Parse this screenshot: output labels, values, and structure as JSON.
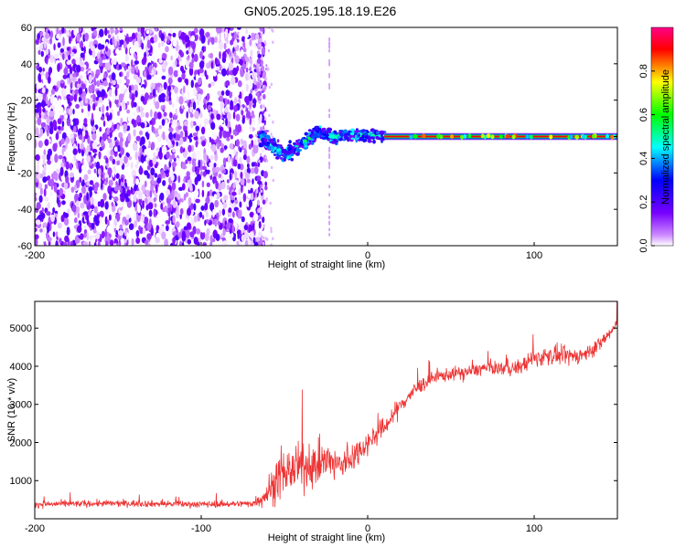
{
  "figure": {
    "title": "GN05.2025.195.18.19.E26"
  },
  "chart_data": [
    {
      "type": "heatmap",
      "title": "GN05.2025.195.18.19.E26",
      "xlabel": "Height of straight line (km)",
      "ylabel": "Frequency (Hz)",
      "xlim": [
        -200,
        150
      ],
      "ylim": [
        -60,
        60
      ],
      "x_ticks": [
        -200,
        -100,
        0,
        100
      ],
      "y_ticks": [
        -60,
        -40,
        -20,
        0,
        20,
        40,
        60
      ],
      "x_tick_labels": [
        "-200",
        "-100",
        "0",
        "100"
      ],
      "y_tick_labels": [
        "-60",
        "-40",
        "-20",
        "0",
        "20",
        "40",
        "60"
      ],
      "colorbar": {
        "label": "Normalized spectral amplitude",
        "range": [
          0,
          1
        ],
        "ticks": [
          0.0,
          0.2,
          0.4,
          0.6,
          0.8
        ],
        "tick_labels": [
          "0.0",
          "0.2",
          "0.4",
          "0.6",
          "0.8"
        ],
        "colormap": [
          "#ffffff",
          "#9900ff",
          "#0000ff",
          "#00ffff",
          "#00ff00",
          "#ffff00",
          "#ff0000",
          "#ff00aa"
        ]
      },
      "regions": [
        {
          "name": "broadband noise",
          "x_range": [
            -200,
            -65
          ],
          "freq_range": [
            -60,
            60
          ],
          "amplitude": 0.1
        },
        {
          "name": "transition",
          "x_range": [
            -65,
            10
          ],
          "center_freq": [
            [
              -65,
              0
            ],
            [
              -50,
              -10
            ],
            [
              -40,
              -5
            ],
            [
              -30,
              3
            ],
            [
              -20,
              0
            ],
            [
              0,
              1
            ],
            [
              10,
              0
            ]
          ],
          "amplitude": 0.45
        },
        {
          "name": "carrier line",
          "x_range": [
            10,
            150
          ],
          "center_freq": 0,
          "amplitude": 0.9
        }
      ]
    },
    {
      "type": "line",
      "xlabel": "Height of straight line (km)",
      "ylabel": "SNR (10 * v/v)",
      "xlim": [
        -200,
        150
      ],
      "ylim": [
        0,
        5700
      ],
      "x_ticks": [
        -200,
        -100,
        0,
        100
      ],
      "y_ticks": [
        1000,
        2000,
        3000,
        4000,
        5000
      ],
      "x_tick_labels": [
        "-200",
        "-100",
        "0",
        "100"
      ],
      "y_tick_labels": [
        "1000",
        "2000",
        "3000",
        "4000",
        "5000"
      ],
      "line_color": "#ee3333",
      "series": [
        {
          "x": [
            -200,
            -180,
            -160,
            -140,
            -120,
            -100,
            -80,
            -70,
            -65,
            -60,
            -55,
            -50,
            -45,
            -40,
            -35,
            -30,
            -25,
            -20,
            -15,
            -10,
            -5,
            0,
            5,
            10,
            15,
            20,
            30,
            40,
            50,
            60,
            70,
            80,
            90,
            100,
            110,
            120,
            130,
            140,
            150
          ],
          "values": [
            380,
            390,
            400,
            400,
            390,
            380,
            390,
            400,
            500,
            700,
            1000,
            1200,
            1300,
            1350,
            1400,
            1450,
            1500,
            1450,
            1400,
            1600,
            1800,
            2000,
            2200,
            2400,
            2700,
            3000,
            3450,
            3700,
            3800,
            3850,
            3950,
            3950,
            3950,
            4200,
            4300,
            4250,
            4300,
            4600,
            5100
          ],
          "noise": [
            150,
            150,
            150,
            150,
            150,
            150,
            150,
            160,
            300,
            700,
            900,
            1000,
            1000,
            1000,
            1000,
            900,
            900,
            800,
            800,
            700,
            600,
            500,
            500,
            450,
            450,
            400,
            350,
            300,
            300,
            300,
            300,
            300,
            350,
            400,
            450,
            400,
            350,
            350,
            300
          ]
        }
      ]
    }
  ]
}
